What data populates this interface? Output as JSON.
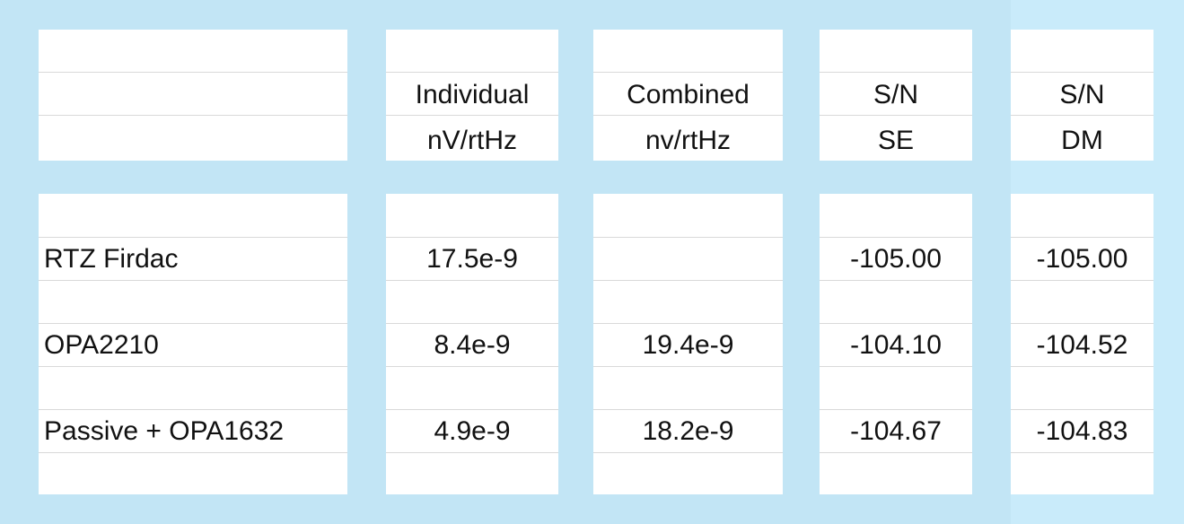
{
  "header": {
    "columns": [
      [
        "Individual",
        "nV/rtHz"
      ],
      [
        "Combined",
        "nv/rtHz"
      ],
      [
        "S/N",
        "SE"
      ],
      [
        "S/N",
        "DM"
      ]
    ]
  },
  "table": {
    "rows": [
      [
        "RTZ Firdac",
        "17.5e-9",
        null,
        "-105.00",
        "-105.00"
      ],
      [
        "OPA2210",
        "8.4e-9",
        "19.4e-9",
        "-104.10",
        "-104.52"
      ],
      [
        "Passive + OPA1632",
        "4.9e-9",
        "18.2e-9",
        "-104.67",
        "-104.83"
      ]
    ]
  }
}
